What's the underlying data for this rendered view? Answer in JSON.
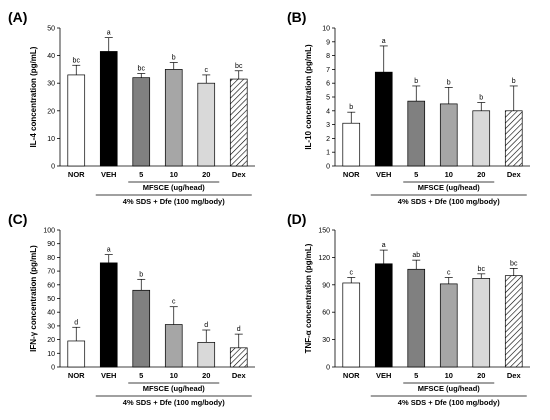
{
  "figure": {
    "group_label": "MFSCE (ug/head)",
    "treatment_label": "4% SDS + Dfe (100 mg/body)"
  },
  "styles": {
    "fill_colors": [
      "#ffffff",
      "#000000",
      "#808080",
      "#a6a6a6",
      "#d9d9d9",
      "hatched"
    ],
    "hatch_color": "#000000"
  },
  "chart_data": [
    {
      "type": "bar",
      "panel_letter": "(A)",
      "ylabel": "IL-4 concentration (pg/mL)",
      "categories": [
        "NOR",
        "VEH",
        "5",
        "10",
        "20",
        "Dex"
      ],
      "values": [
        33,
        41.5,
        32,
        35,
        30,
        31.5
      ],
      "errors": [
        3.5,
        5,
        1.5,
        2.5,
        3,
        3
      ],
      "significance": [
        "bc",
        "a",
        "bc",
        "b",
        "c",
        "bc"
      ],
      "ylim": [
        0,
        50
      ],
      "yticks": [
        0,
        10,
        20,
        30,
        40,
        50
      ],
      "grid": false
    },
    {
      "type": "bar",
      "panel_letter": "(B)",
      "ylabel": "IL-10 concentration (pg/mL)",
      "categories": [
        "NOR",
        "VEH",
        "5",
        "10",
        "20",
        "Dex"
      ],
      "values": [
        3.1,
        6.8,
        4.7,
        4.5,
        4.0,
        4.0
      ],
      "errors": [
        0.8,
        1.9,
        1.1,
        1.2,
        0.6,
        1.8
      ],
      "significance": [
        "b",
        "a",
        "b",
        "b",
        "b",
        "b"
      ],
      "ylim": [
        0,
        10
      ],
      "yticks": [
        0,
        1,
        2,
        3,
        4,
        5,
        6,
        7,
        8,
        9,
        10
      ],
      "grid": false
    },
    {
      "type": "bar",
      "panel_letter": "(C)",
      "ylabel": "IFN-γ concentration (pg/mL)",
      "categories": [
        "NOR",
        "VEH",
        "5",
        "10",
        "20",
        "Dex"
      ],
      "values": [
        19,
        76,
        56,
        31,
        18,
        14
      ],
      "errors": [
        10,
        6,
        8,
        13,
        9,
        10
      ],
      "significance": [
        "d",
        "a",
        "b",
        "c",
        "d",
        "d"
      ],
      "ylim": [
        0,
        100
      ],
      "yticks": [
        0,
        10,
        20,
        30,
        40,
        50,
        60,
        70,
        80,
        90,
        100
      ],
      "grid": false
    },
    {
      "type": "bar",
      "panel_letter": "(D)",
      "ylabel": "TNF-α concentration (pg/mL)",
      "categories": [
        "NOR",
        "VEH",
        "5",
        "10",
        "20",
        "Dex"
      ],
      "values": [
        92,
        113,
        107,
        91,
        97,
        100
      ],
      "errors": [
        6,
        15,
        10,
        7,
        5,
        8
      ],
      "significance": [
        "c",
        "a",
        "ab",
        "c",
        "bc",
        "bc"
      ],
      "ylim": [
        0,
        150
      ],
      "yticks": [
        0,
        30,
        60,
        90,
        120,
        150
      ],
      "grid": false
    }
  ]
}
